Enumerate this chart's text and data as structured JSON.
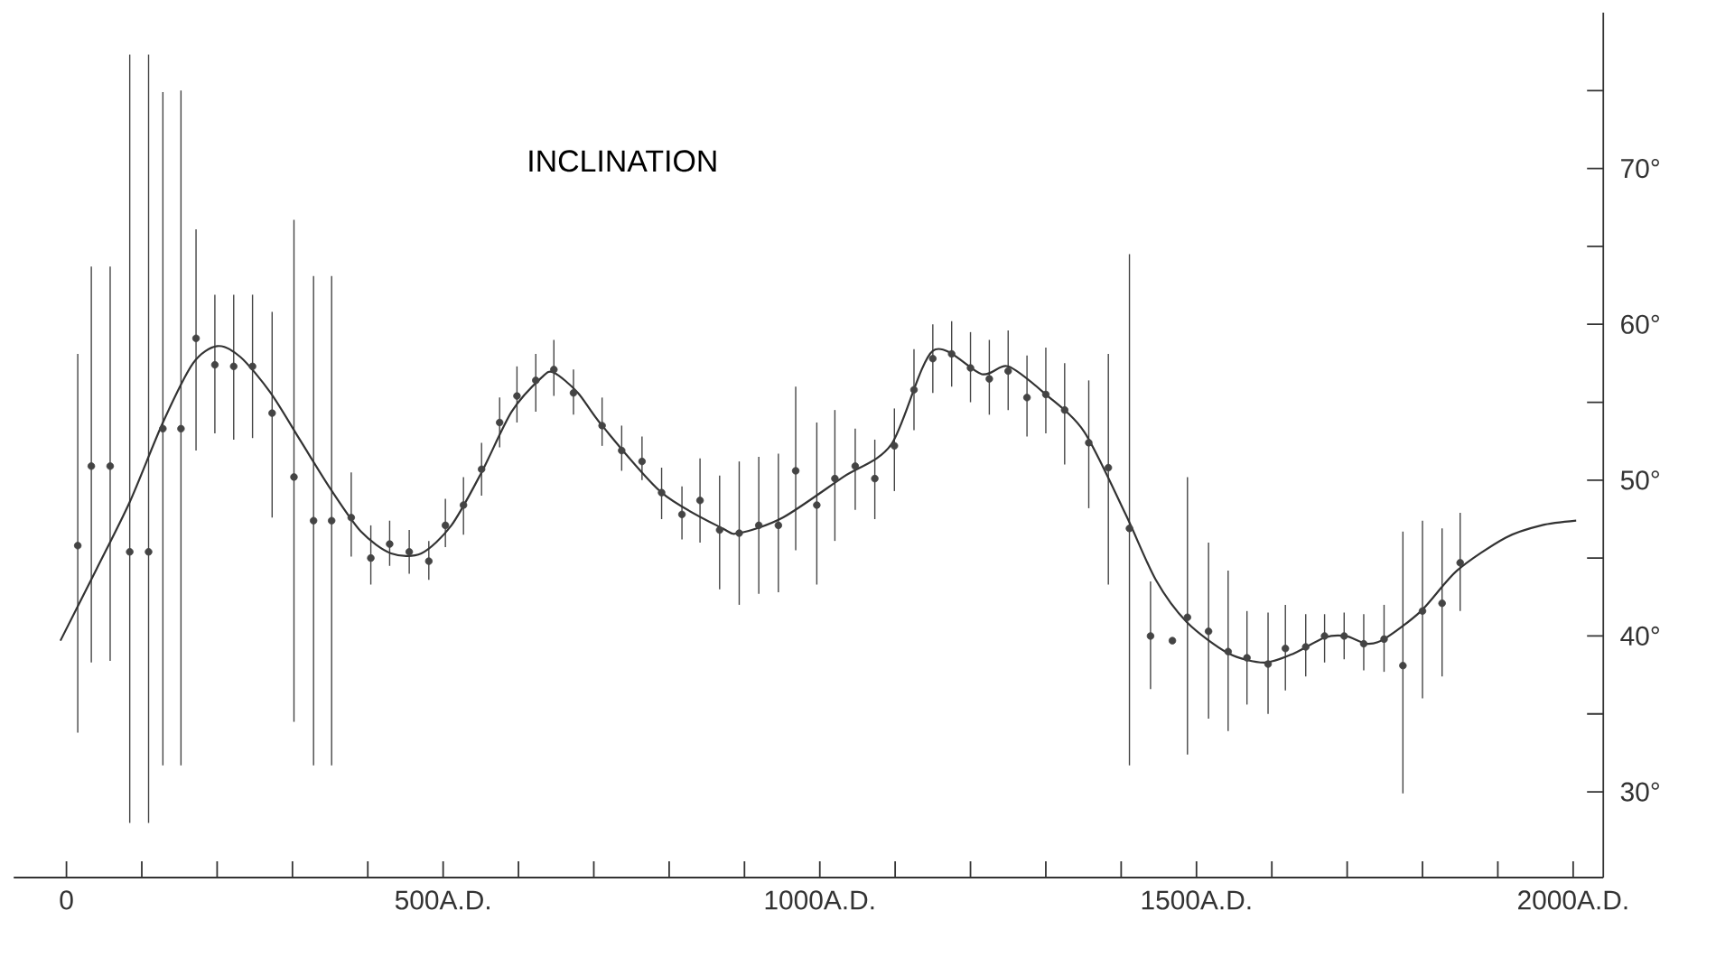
{
  "chart_data": {
    "type": "scatter",
    "title": "INCLINATION",
    "xlim": [
      -70,
      2040
    ],
    "ylim": [
      24.5,
      80
    ],
    "xticks": [
      {
        "value": 0,
        "label": "0"
      },
      {
        "value": 100,
        "label": null
      },
      {
        "value": 200,
        "label": null
      },
      {
        "value": 300,
        "label": null
      },
      {
        "value": 400,
        "label": null
      },
      {
        "value": 500,
        "label": "500A.D."
      },
      {
        "value": 600,
        "label": null
      },
      {
        "value": 700,
        "label": null
      },
      {
        "value": 800,
        "label": null
      },
      {
        "value": 900,
        "label": null
      },
      {
        "value": 1000,
        "label": "1000A.D."
      },
      {
        "value": 1100,
        "label": null
      },
      {
        "value": 1200,
        "label": null
      },
      {
        "value": 1300,
        "label": null
      },
      {
        "value": 1400,
        "label": null
      },
      {
        "value": 1500,
        "label": "1500A.D."
      },
      {
        "value": 1600,
        "label": null
      },
      {
        "value": 1700,
        "label": null
      },
      {
        "value": 1800,
        "label": null
      },
      {
        "value": 1900,
        "label": null
      },
      {
        "value": 2000,
        "label": "2000A.D."
      }
    ],
    "yticks": [
      {
        "value": 30,
        "label": "30°"
      },
      {
        "value": 35,
        "label": null
      },
      {
        "value": 40,
        "label": "40°"
      },
      {
        "value": 45,
        "label": null
      },
      {
        "value": 50,
        "label": "50°"
      },
      {
        "value": 55,
        "label": null
      },
      {
        "value": 60,
        "label": "60°"
      },
      {
        "value": 65,
        "label": null
      },
      {
        "value": 70,
        "label": "70°"
      },
      {
        "value": 75,
        "label": null
      }
    ],
    "series": [
      {
        "color": "#444444",
        "marker": "circle",
        "x": [
          15,
          33,
          58,
          84,
          109,
          128,
          152,
          172,
          197,
          222,
          247,
          273,
          302,
          328,
          352,
          378,
          404,
          429,
          455,
          481,
          503,
          527,
          551,
          575,
          598,
          623,
          647,
          673,
          711,
          737,
          764,
          790,
          817,
          841,
          867,
          893,
          919,
          945,
          968,
          996,
          1020,
          1047,
          1073,
          1099,
          1125,
          1150,
          1175,
          1200,
          1225,
          1250,
          1275,
          1300,
          1325,
          1357,
          1383,
          1411,
          1439,
          1468,
          1488,
          1516,
          1542,
          1567,
          1595,
          1618,
          1645,
          1670,
          1696,
          1722,
          1749,
          1774,
          1800,
          1826,
          1850
        ],
        "values": [
          45.8,
          50.9,
          50.9,
          45.4,
          45.4,
          53.3,
          53.3,
          59.1,
          57.4,
          57.3,
          57.3,
          54.3,
          50.2,
          47.4,
          47.4,
          47.6,
          45.0,
          45.9,
          45.4,
          44.8,
          47.1,
          48.4,
          50.7,
          53.7,
          55.4,
          56.4,
          57.1,
          55.6,
          53.5,
          51.9,
          51.2,
          49.2,
          47.8,
          48.7,
          46.8,
          46.6,
          47.1,
          47.1,
          50.6,
          48.4,
          50.1,
          50.9,
          50.1,
          52.2,
          55.8,
          57.8,
          58.1,
          57.2,
          56.5,
          57.0,
          55.3,
          55.5,
          54.5,
          52.4,
          50.8,
          46.9,
          40.0,
          39.7,
          41.2,
          40.3,
          39.0,
          38.6,
          38.2,
          39.2,
          39.3,
          40.0,
          40.0,
          39.5,
          39.8,
          38.1,
          41.6,
          42.1,
          44.7
        ],
        "errors": [
          [
            33.8,
            58.1
          ],
          [
            38.3,
            63.7
          ],
          [
            38.4,
            63.7
          ],
          [
            28.0,
            77.3
          ],
          [
            28.0,
            77.3
          ],
          [
            31.7,
            74.9
          ],
          [
            31.7,
            75.0
          ],
          [
            51.9,
            66.1
          ],
          [
            53.0,
            61.9
          ],
          [
            52.6,
            61.9
          ],
          [
            52.7,
            61.9
          ],
          [
            47.6,
            60.8
          ],
          [
            34.5,
            66.7
          ],
          [
            31.7,
            63.1
          ],
          [
            31.7,
            63.1
          ],
          [
            45.1,
            50.5
          ],
          [
            43.3,
            47.1
          ],
          [
            44.5,
            47.4
          ],
          [
            44.0,
            46.8
          ],
          [
            43.6,
            46.1
          ],
          [
            45.7,
            48.8
          ],
          [
            46.5,
            50.2
          ],
          [
            49.0,
            52.4
          ],
          [
            52.1,
            55.3
          ],
          [
            53.7,
            57.3
          ],
          [
            54.4,
            58.1
          ],
          [
            55.4,
            59.0
          ],
          [
            54.2,
            57.1
          ],
          [
            52.2,
            55.3
          ],
          [
            50.6,
            53.5
          ],
          [
            50.0,
            52.8
          ],
          [
            47.5,
            50.8
          ],
          [
            46.2,
            49.6
          ],
          [
            46.0,
            51.4
          ],
          [
            43.0,
            50.3
          ],
          [
            42.0,
            51.2
          ],
          [
            42.7,
            51.5
          ],
          [
            42.8,
            51.7
          ],
          [
            45.5,
            56.0
          ],
          [
            43.3,
            53.7
          ],
          [
            46.1,
            54.5
          ],
          [
            48.1,
            53.3
          ],
          [
            47.5,
            52.6
          ],
          [
            49.3,
            54.6
          ],
          [
            53.2,
            58.4
          ],
          [
            55.6,
            60.0
          ],
          [
            56.0,
            60.2
          ],
          [
            55.0,
            59.5
          ],
          [
            54.2,
            59.0
          ],
          [
            54.5,
            59.6
          ],
          [
            52.8,
            58.0
          ],
          [
            53.0,
            58.5
          ],
          [
            51.0,
            57.5
          ],
          [
            48.2,
            56.4
          ],
          [
            43.3,
            58.1
          ],
          [
            31.7,
            64.5
          ],
          [
            36.6,
            43.5
          ],
          null,
          [
            32.4,
            50.2
          ],
          [
            34.7,
            46.0
          ],
          [
            33.9,
            44.2
          ],
          [
            35.6,
            41.6
          ],
          [
            35.0,
            41.5
          ],
          [
            36.5,
            42.0
          ],
          [
            37.4,
            41.4
          ],
          [
            38.3,
            41.4
          ],
          [
            38.5,
            41.5
          ],
          [
            37.8,
            41.4
          ],
          [
            37.7,
            42.0
          ],
          [
            29.9,
            46.7
          ],
          [
            36.0,
            47.4
          ],
          [
            37.4,
            46.9
          ],
          [
            41.6,
            47.9
          ]
        ]
      },
      {
        "type": "line",
        "color": "#333333",
        "marker": "none",
        "line_style": "solid",
        "x": [
          -8,
          40,
          84,
          128,
          168,
          200,
          231,
          271,
          311,
          351,
          391,
          431,
          471,
          511,
          551,
          591,
          631,
          647,
          679,
          711,
          790,
          871,
          893,
          951,
          1031,
          1095,
          1150,
          1215,
          1250,
          1300,
          1351,
          1406,
          1446,
          1487,
          1542,
          1590,
          1630,
          1670,
          1698,
          1726,
          1749,
          1798,
          1846,
          1910,
          1958,
          2004
        ],
        "values": [
          39.7,
          44.3,
          48.6,
          53.7,
          57.5,
          58.6,
          57.9,
          55.6,
          52.5,
          49.4,
          46.7,
          45.3,
          45.3,
          47.1,
          50.5,
          54.4,
          56.6,
          56.9,
          55.6,
          53.5,
          49.2,
          46.9,
          46.6,
          47.6,
          50.2,
          52.3,
          58.3,
          56.8,
          57.3,
          55.5,
          53.1,
          47.8,
          43.6,
          40.9,
          38.9,
          38.3,
          38.9,
          39.9,
          40.0,
          39.5,
          39.8,
          41.6,
          44.2,
          46.3,
          47.1,
          47.4
        ]
      }
    ]
  }
}
